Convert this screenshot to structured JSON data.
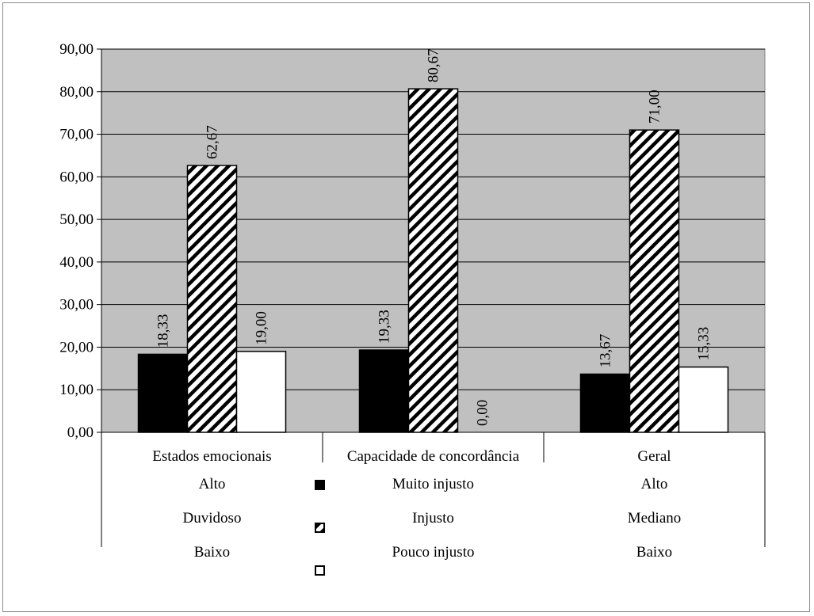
{
  "chart_data": {
    "type": "bar",
    "categories": [
      "Estados emocionais",
      "Capacidade de concordância",
      "Geral"
    ],
    "series": [
      {
        "name": "Muito injusto",
        "values": [
          18.33,
          19.33,
          13.67
        ],
        "color": "#000000",
        "pattern": "solid"
      },
      {
        "name": "Injusto",
        "values": [
          62.67,
          80.67,
          71.0
        ],
        "color": "#000000",
        "pattern": "diagonal-hatch"
      },
      {
        "name": "Pouco injusto",
        "values": [
          19.0,
          0.0,
          15.33
        ],
        "color": "#ffffff",
        "pattern": "empty"
      }
    ],
    "data_labels": [
      [
        "18,33",
        "19,33",
        "13,67"
      ],
      [
        "62,67",
        "80,67",
        "71,00"
      ],
      [
        "19,00",
        "0,00",
        "15,33"
      ]
    ],
    "ylim": [
      0,
      90
    ],
    "yticks": [
      0,
      10,
      20,
      30,
      40,
      50,
      60,
      70,
      80,
      90
    ],
    "ytick_labels": [
      "0,00",
      "10,00",
      "20,00",
      "30,00",
      "40,00",
      "50,00",
      "60,00",
      "70,00",
      "80,00",
      "90,00"
    ],
    "grid": true,
    "plot_background": "#c0c0c0",
    "legend_position": "bottom (data table style)",
    "table_rows": [
      [
        "Alto",
        "Muito injusto",
        "Alto"
      ],
      [
        "Duvidoso",
        "Injusto",
        "Mediano"
      ],
      [
        "Baixo",
        "Pouco injusto",
        "Baixo"
      ]
    ]
  }
}
